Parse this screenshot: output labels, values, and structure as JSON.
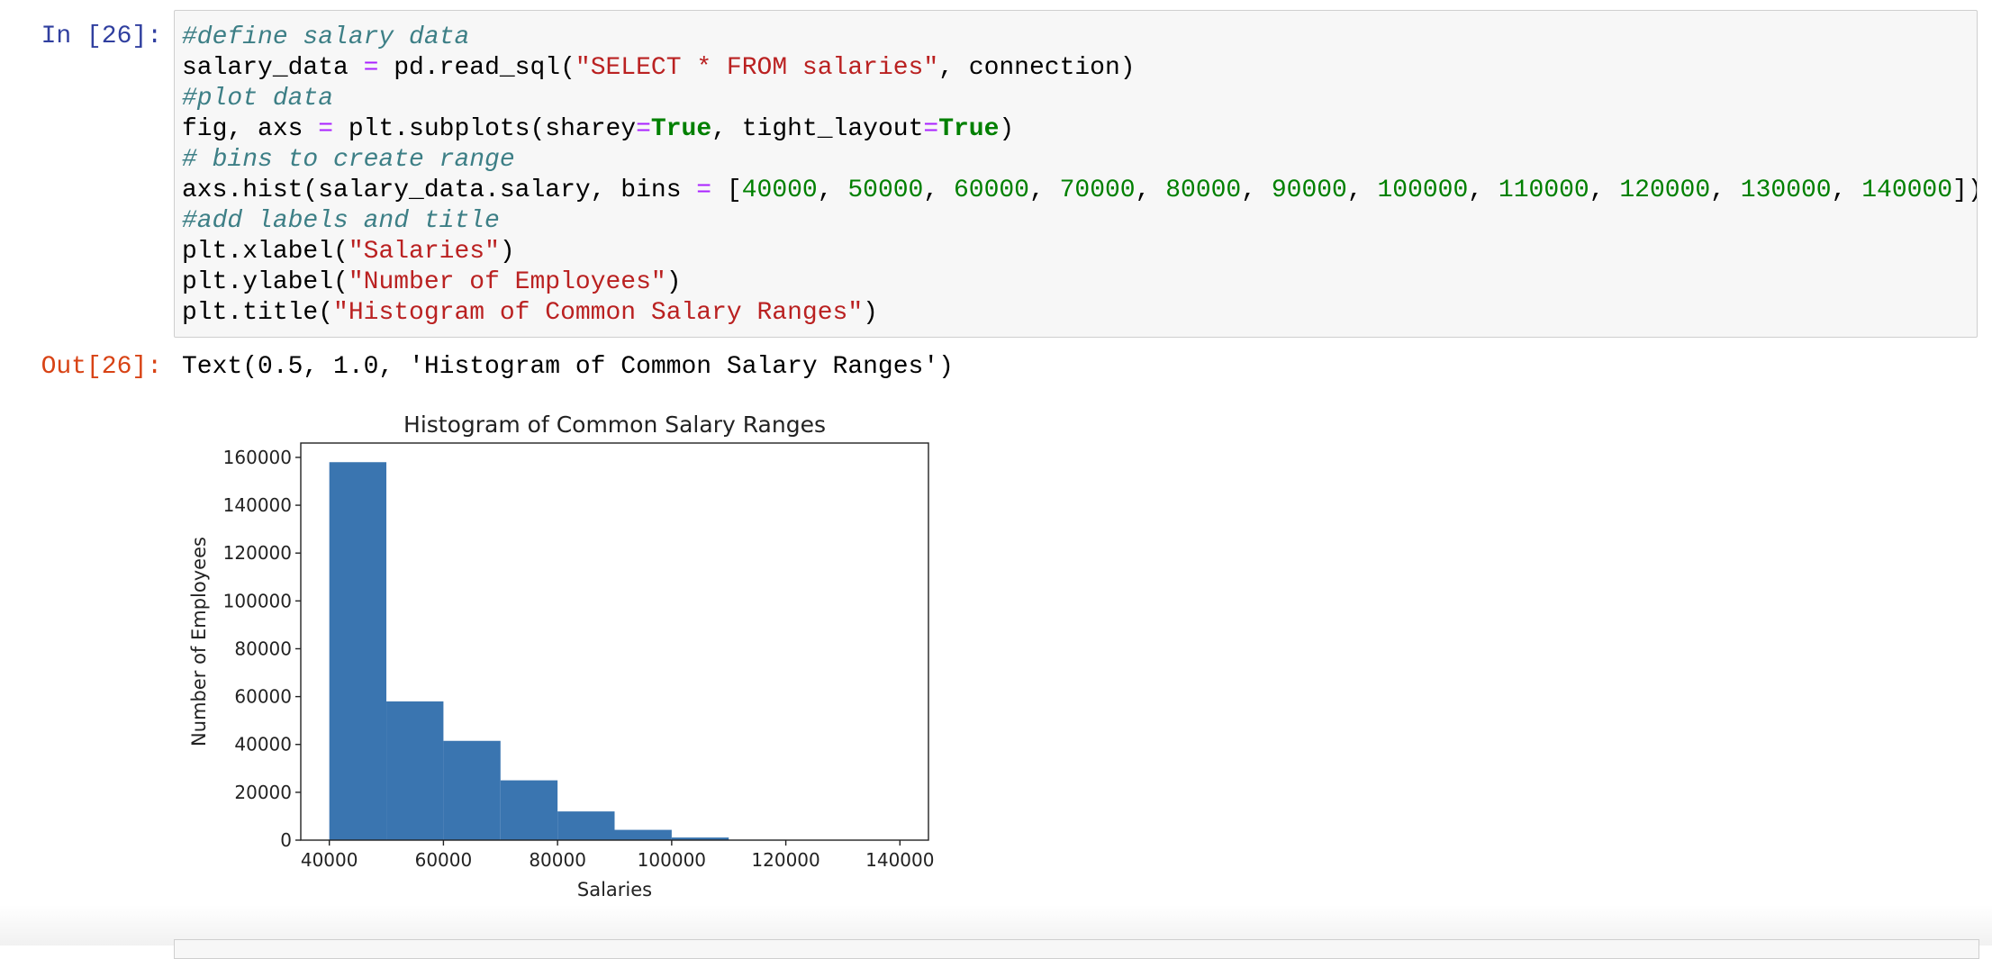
{
  "notebook": {
    "input_prompt": "In [26]:",
    "code_lines": [
      "#define salary data",
      "salary_data = pd.read_sql(\"SELECT * FROM salaries\", connection)",
      "#plot data",
      "fig, axs = plt.subplots(sharey=True, tight_layout=True)",
      "# bins to create range",
      "axs.hist(salary_data.salary, bins = [40000, 50000, 60000, 70000, 80000, 90000, 100000, 110000, 120000, 130000, 140000])",
      "#add labels and title",
      "plt.xlabel(\"Salaries\")",
      "plt.ylabel(\"Number of Employees\")",
      "plt.title(\"Histogram of Common Salary Ranges\")"
    ],
    "output_prompt": "Out[26]:",
    "output_text": "Text(0.5, 1.0, 'Histogram of Common Salary Ranges')"
  },
  "chart_data": {
    "type": "histogram",
    "title": "Histogram of Common Salary Ranges",
    "xlabel": "Salaries",
    "ylabel": "Number of Employees",
    "bins": [
      40000,
      50000,
      60000,
      70000,
      80000,
      90000,
      100000,
      110000,
      120000,
      130000,
      140000
    ],
    "counts": [
      158000,
      58000,
      41500,
      25000,
      12000,
      4300,
      1100,
      200,
      0,
      0
    ],
    "color": "#3a75b0",
    "xlim": [
      35000,
      145000
    ],
    "ylim": [
      0,
      166000
    ],
    "xticks": [
      40000,
      60000,
      80000,
      100000,
      120000,
      140000
    ],
    "yticks": [
      0,
      20000,
      40000,
      60000,
      80000,
      100000,
      120000,
      140000,
      160000
    ]
  }
}
